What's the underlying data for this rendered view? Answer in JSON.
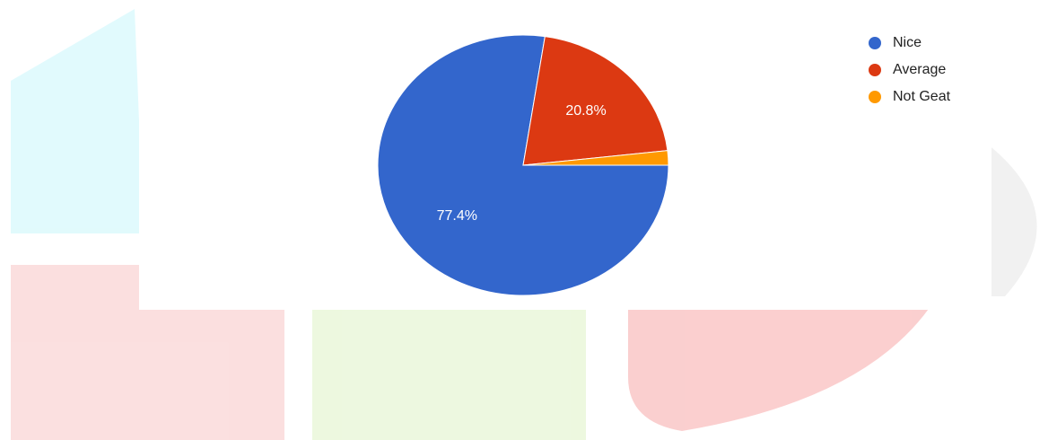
{
  "chart_data": {
    "type": "pie",
    "categories": [
      "Nice",
      "Average",
      "Not Geat"
    ],
    "values": [
      77.4,
      20.8,
      1.8
    ],
    "value_labels": [
      "77.4%",
      "20.8%",
      null
    ],
    "colors": [
      "#3366cc",
      "#dc3912",
      "#ff9900"
    ],
    "legend": "top-right"
  }
}
